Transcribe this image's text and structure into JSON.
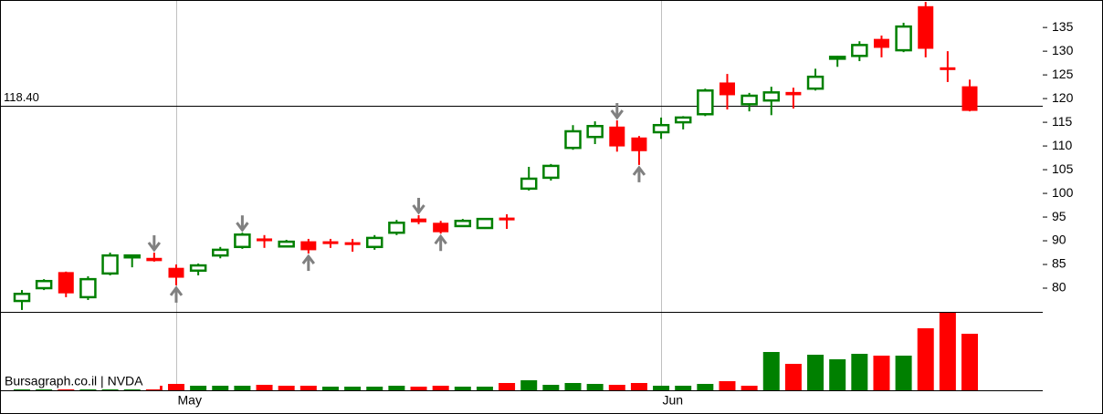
{
  "chart_data": {
    "type": "candlestick",
    "categories": [
      null,
      null,
      null,
      null,
      null,
      null,
      null,
      null,
      null,
      null,
      null,
      null,
      null,
      null,
      null,
      null,
      null,
      null,
      null,
      null,
      null,
      null,
      null,
      null,
      null,
      null,
      null,
      null,
      null,
      null,
      null,
      null,
      null,
      null,
      null,
      null,
      null,
      null,
      null,
      null,
      null,
      null,
      null,
      null
    ],
    "xticks": [
      {
        "value": 7,
        "label": "May"
      },
      {
        "value": 29,
        "label": "Jun"
      }
    ],
    "open": [
      77.3,
      80.0,
      83.3,
      78.1,
      83.1,
      86.5,
      86.3,
      84.2,
      83.7,
      86.9,
      88.7,
      90.4,
      88.8,
      89.8,
      89.8,
      89.6,
      88.7,
      91.7,
      94.6,
      93.7,
      93.1,
      92.7,
      94.8,
      101.0,
      103.3,
      109.6,
      111.9,
      114.0,
      111.7,
      112.9,
      115.0,
      116.7,
      123.3,
      118.8,
      119.6,
      121.3,
      122.1,
      128.5,
      129.0,
      132.5,
      130.2,
      139.4,
      126.5,
      122.5
    ],
    "high": [
      79.6,
      81.9,
      83.5,
      82.5,
      87.5,
      87.1,
      87.5,
      85.0,
      85.2,
      88.7,
      91.7,
      91.2,
      90.2,
      90.4,
      90.4,
      90.4,
      91.2,
      94.4,
      95.4,
      94.2,
      94.6,
      94.8,
      95.6,
      105.6,
      106.2,
      114.4,
      115.2,
      115.4,
      112.1,
      116.0,
      116.3,
      122.1,
      125.2,
      121.2,
      122.5,
      122.3,
      126.3,
      129.0,
      132.1,
      133.3,
      136.0,
      140.4,
      130.0,
      124.0
    ],
    "low": [
      75.4,
      79.6,
      78.1,
      77.5,
      82.7,
      84.4,
      85.6,
      80.6,
      82.7,
      86.3,
      88.3,
      88.5,
      88.7,
      87.3,
      88.5,
      87.7,
      88.1,
      91.2,
      93.5,
      91.5,
      92.9,
      92.5,
      92.5,
      100.6,
      102.7,
      109.2,
      110.4,
      108.8,
      106.0,
      111.5,
      113.5,
      116.3,
      117.7,
      117.3,
      116.5,
      117.9,
      121.7,
      126.7,
      127.9,
      128.7,
      129.8,
      128.7,
      123.5,
      117.3
    ],
    "close": [
      78.8,
      81.5,
      79.0,
      81.9,
      86.9,
      86.9,
      85.8,
      82.3,
      84.8,
      88.1,
      91.3,
      90.0,
      89.8,
      88.1,
      89.4,
      89.2,
      90.6,
      93.8,
      94.0,
      91.9,
      94.2,
      94.6,
      94.4,
      103.1,
      105.8,
      113.1,
      114.2,
      110.0,
      109.0,
      114.4,
      116.0,
      121.7,
      120.8,
      120.6,
      121.3,
      120.8,
      124.6,
      128.8,
      131.3,
      130.8,
      135.2,
      130.6,
      126.2,
      117.5
    ],
    "up_color": "#008000",
    "down_color": "#ff0000",
    "ylim": [
      75,
      140.8
    ],
    "yticks": [
      80,
      85,
      90,
      95,
      100,
      105,
      110,
      115,
      120,
      125,
      130,
      135
    ],
    "hline": {
      "value": 118.4,
      "label": "118.40"
    },
    "signals": {
      "down": [
        6,
        10,
        18,
        27
      ],
      "up": [
        7,
        13,
        19,
        28
      ]
    },
    "signal_color": "#808080",
    "volume": {
      "values": [
        5,
        5,
        5,
        5,
        5,
        5,
        5,
        7,
        5,
        5,
        5,
        6,
        5,
        5,
        4,
        4,
        4,
        5,
        4,
        5,
        4,
        4,
        8,
        11,
        6,
        8,
        7,
        6,
        8,
        5,
        5,
        7,
        10,
        5,
        42,
        29,
        39,
        34,
        40,
        38,
        38,
        68,
        86,
        62
      ],
      "colors": [
        "#008000",
        "#008000",
        "#ff0000",
        "#008000",
        "#008000",
        "#008000",
        "#ff0000",
        "#ff0000",
        "#008000",
        "#008000",
        "#008000",
        "#ff0000",
        "#ff0000",
        "#ff0000",
        "#008000",
        "#008000",
        "#008000",
        "#008000",
        "#ff0000",
        "#ff0000",
        "#008000",
        "#008000",
        "#ff0000",
        "#008000",
        "#008000",
        "#008000",
        "#008000",
        "#ff0000",
        "#ff0000",
        "#008000",
        "#008000",
        "#008000",
        "#ff0000",
        "#ff0000",
        "#008000",
        "#ff0000",
        "#008000",
        "#008000",
        "#008000",
        "#ff0000",
        "#008000",
        "#ff0000",
        "#ff0000",
        "#ff0000"
      ],
      "ylim": [
        0,
        86
      ]
    },
    "watermark": "Bursagraph.co.il | NVDA"
  }
}
